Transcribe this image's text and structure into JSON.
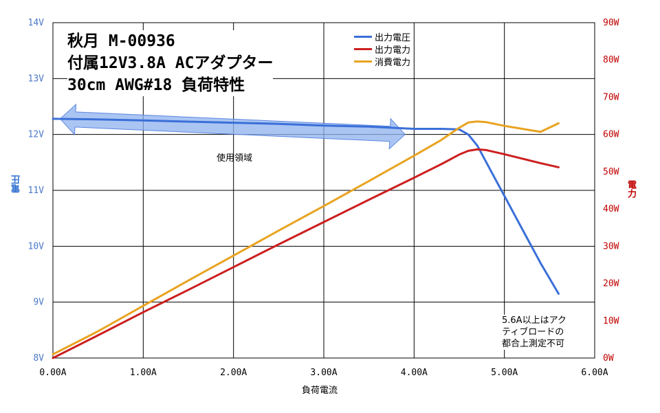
{
  "title": {
    "lines": [
      "秋月 M-00936",
      "付属12V3.8A ACアダプター",
      "30cm AWG#18 負荷特性"
    ]
  },
  "colors": {
    "voltage": "#3a6fd8",
    "power_out": "#cc1f1f",
    "power_in": "#e8a320",
    "axis_left": "#4a78c8",
    "axis_right": "#c00000",
    "arrow_fill": "#8fb2ef",
    "arrow_stroke": "#5a86e0"
  },
  "annotations": {
    "region_label": "使用領域",
    "note_lines": [
      "5.6A以上はアク",
      "ティブロードの",
      "都合上測定不可"
    ]
  },
  "chart_data": {
    "type": "line",
    "xlabel": "負荷電流",
    "ylabel_left": "電圧",
    "ylabel_right": "電力",
    "x_ticks": [
      "0.00A",
      "1.00A",
      "2.00A",
      "3.00A",
      "4.00A",
      "5.00A",
      "6.00A"
    ],
    "x_tick_values": [
      0,
      1,
      2,
      3,
      4,
      5,
      6
    ],
    "y_left_ticks": [
      "8V",
      "9V",
      "10V",
      "11V",
      "12V",
      "13V",
      "14V"
    ],
    "y_left_tick_values": [
      8,
      9,
      10,
      11,
      12,
      13,
      14
    ],
    "y_right_ticks": [
      "0W",
      "10W",
      "20W",
      "30W",
      "40W",
      "50W",
      "60W",
      "70W",
      "80W",
      "90W"
    ],
    "y_right_tick_values": [
      0,
      10,
      20,
      30,
      40,
      50,
      60,
      70,
      80,
      90
    ],
    "xlim": [
      0,
      6
    ],
    "ylim_left": [
      8,
      14
    ],
    "ylim_right": [
      0,
      90
    ],
    "grid": true,
    "legend_position": "top-center",
    "series": [
      {
        "name": "出力電圧",
        "axis": "left",
        "x": [
          0,
          0.5,
          1.0,
          1.5,
          2.0,
          2.5,
          3.0,
          3.5,
          4.0,
          4.3,
          4.5,
          4.6,
          4.7,
          4.8,
          4.9,
          5.0,
          5.2,
          5.4,
          5.6
        ],
        "y": [
          12.28,
          12.27,
          12.25,
          12.23,
          12.21,
          12.19,
          12.16,
          12.14,
          12.1,
          12.1,
          12.09,
          12.0,
          11.8,
          11.5,
          11.2,
          10.9,
          10.3,
          9.7,
          9.15
        ]
      },
      {
        "name": "出力電力",
        "axis": "right",
        "x": [
          0,
          0.5,
          1.0,
          1.5,
          2.0,
          2.5,
          3.0,
          3.5,
          4.0,
          4.3,
          4.5,
          4.6,
          4.7,
          4.8,
          5.0,
          5.2,
          5.4,
          5.6
        ],
        "y": [
          0,
          6.1,
          12.3,
          18.3,
          24.4,
          30.5,
          36.5,
          42.5,
          48.4,
          52.0,
          54.6,
          55.6,
          56.0,
          55.8,
          54.7,
          53.5,
          52.3,
          51.2
        ]
      },
      {
        "name": "消費電力",
        "axis": "right",
        "x": [
          0,
          0.5,
          1.0,
          1.5,
          2.0,
          2.5,
          3.0,
          3.5,
          4.0,
          4.3,
          4.5,
          4.6,
          4.7,
          4.8,
          5.0,
          5.2,
          5.4,
          5.6
        ],
        "y": [
          1.0,
          7.2,
          14.0,
          20.8,
          27.5,
          34.2,
          40.8,
          47.5,
          54.3,
          58.5,
          61.8,
          63.2,
          63.5,
          63.3,
          62.3,
          61.5,
          60.7,
          63.0
        ]
      }
    ]
  }
}
